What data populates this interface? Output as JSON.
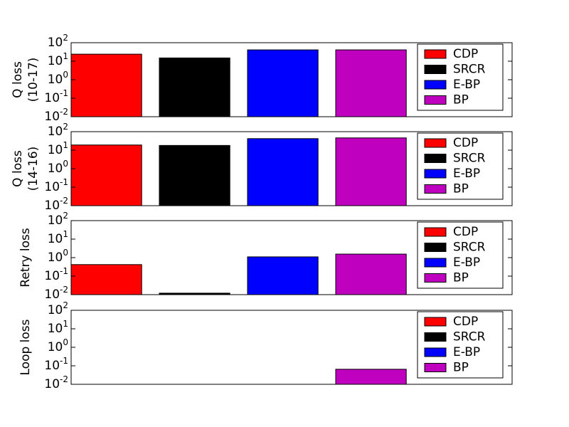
{
  "chart_data": [
    {
      "type": "bar",
      "ylabel": [
        "Q loss",
        "(10-17)"
      ],
      "log_y": true,
      "legend": "upper right",
      "categories": [
        null
      ],
      "series": [
        {
          "name": "CDP",
          "color": "#ff0000",
          "values": [
            24
          ]
        },
        {
          "name": "SRCR",
          "color": "#000000",
          "values": [
            15
          ]
        },
        {
          "name": "E-BP",
          "color": "#0000ff",
          "values": [
            41
          ]
        },
        {
          "name": "BP",
          "color": "#bf00bf",
          "values": [
            41
          ]
        }
      ],
      "ylim": [
        0.01,
        100
      ],
      "yticks": [
        {
          "value": 0.01,
          "label": "10^-2"
        },
        {
          "value": 0.1,
          "label": "10^-1"
        },
        {
          "value": 1,
          "label": "10^0"
        },
        {
          "value": 10,
          "label": "10^1"
        },
        {
          "value": 100,
          "label": "10^2"
        }
      ]
    },
    {
      "type": "bar",
      "ylabel": [
        "Q loss",
        "(14-16)"
      ],
      "log_y": true,
      "legend": "upper right",
      "categories": [
        null
      ],
      "series": [
        {
          "name": "CDP",
          "color": "#ff0000",
          "values": [
            19
          ]
        },
        {
          "name": "SRCR",
          "color": "#000000",
          "values": [
            18
          ]
        },
        {
          "name": "E-BP",
          "color": "#0000ff",
          "values": [
            42
          ]
        },
        {
          "name": "BP",
          "color": "#bf00bf",
          "values": [
            46
          ]
        }
      ],
      "ylim": [
        0.01,
        100
      ],
      "yticks": [
        {
          "value": 0.01,
          "label": "10^-2"
        },
        {
          "value": 0.1,
          "label": "10^-1"
        },
        {
          "value": 1,
          "label": "10^0"
        },
        {
          "value": 10,
          "label": "10^1"
        },
        {
          "value": 100,
          "label": "10^2"
        }
      ]
    },
    {
      "type": "bar",
      "ylabel": [
        "Retry loss"
      ],
      "log_y": true,
      "legend": "upper right",
      "categories": [
        null
      ],
      "series": [
        {
          "name": "CDP",
          "color": "#ff0000",
          "values": [
            0.42
          ]
        },
        {
          "name": "SRCR",
          "color": "#000000",
          "values": [
            0.012
          ]
        },
        {
          "name": "E-BP",
          "color": "#0000ff",
          "values": [
            1.1
          ]
        },
        {
          "name": "BP",
          "color": "#bf00bf",
          "values": [
            1.55
          ]
        }
      ],
      "ylim": [
        0.01,
        100
      ],
      "yticks": [
        {
          "value": 0.01,
          "label": "10^-2"
        },
        {
          "value": 0.1,
          "label": "10^-1"
        },
        {
          "value": 1,
          "label": "10^0"
        },
        {
          "value": 10,
          "label": "10^1"
        },
        {
          "value": 100,
          "label": "10^2"
        }
      ]
    },
    {
      "type": "bar",
      "ylabel": [
        "Loop loss"
      ],
      "log_y": true,
      "legend": "upper right",
      "categories": [
        null
      ],
      "series": [
        {
          "name": "CDP",
          "color": "#ff0000",
          "values": [
            null
          ]
        },
        {
          "name": "SRCR",
          "color": "#000000",
          "values": [
            null
          ]
        },
        {
          "name": "E-BP",
          "color": "#0000ff",
          "values": [
            null
          ]
        },
        {
          "name": "BP",
          "color": "#bf00bf",
          "values": [
            0.065
          ]
        }
      ],
      "ylim": [
        0.01,
        100
      ],
      "yticks": [
        {
          "value": 0.01,
          "label": "10^-2"
        },
        {
          "value": 0.1,
          "label": "10^-1"
        },
        {
          "value": 1,
          "label": "10^0"
        },
        {
          "value": 10,
          "label": "10^1"
        },
        {
          "value": 100,
          "label": "10^2"
        }
      ]
    }
  ]
}
